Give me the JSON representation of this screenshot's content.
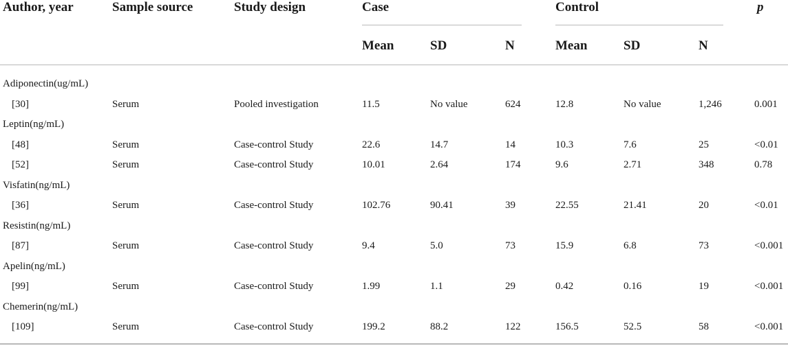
{
  "header": {
    "author_year": "Author, year",
    "sample_source": "Sample source",
    "study_design": "Study design",
    "case": "Case",
    "control": "Control",
    "p": "p",
    "sub": [
      "Mean",
      "SD",
      "N",
      "Mean",
      "SD",
      "N"
    ]
  },
  "groups": [
    {
      "label": "Adiponectin(ug/mL)",
      "rows": [
        {
          "ref": "[30]",
          "source": "Serum",
          "design": "Pooled investigation",
          "case_mean": "11.5",
          "case_sd": "No value",
          "case_n": "624",
          "ctrl_mean": "12.8",
          "ctrl_sd": "No value",
          "ctrl_n": "1,246",
          "p": "0.001"
        }
      ]
    },
    {
      "label": "Leptin(ng/mL)",
      "rows": [
        {
          "ref": "[48]",
          "source": "Serum",
          "design": "Case-control Study",
          "case_mean": "22.6",
          "case_sd": "14.7",
          "case_n": "14",
          "ctrl_mean": "10.3",
          "ctrl_sd": "7.6",
          "ctrl_n": "25",
          "p": "<0.01"
        },
        {
          "ref": "[52]",
          "source": "Serum",
          "design": "Case-control Study",
          "case_mean": "10.01",
          "case_sd": "2.64",
          "case_n": "174",
          "ctrl_mean": "9.6",
          "ctrl_sd": "2.71",
          "ctrl_n": "348",
          "p": "0.78"
        }
      ]
    },
    {
      "label": "Visfatin(ng/mL)",
      "rows": [
        {
          "ref": "[36]",
          "source": "Serum",
          "design": "Case-control Study",
          "case_mean": "102.76",
          "case_sd": "90.41",
          "case_n": "39",
          "ctrl_mean": "22.55",
          "ctrl_sd": "21.41",
          "ctrl_n": "20",
          "p": "<0.01"
        }
      ]
    },
    {
      "label": "Resistin(ng/mL)",
      "rows": [
        {
          "ref": "[87]",
          "source": "Serum",
          "design": "Case-control Study",
          "case_mean": "9.4",
          "case_sd": "5.0",
          "case_n": "73",
          "ctrl_mean": "15.9",
          "ctrl_sd": "6.8",
          "ctrl_n": "73",
          "p": "<0.001"
        }
      ]
    },
    {
      "label": "Apelin(ng/mL)",
      "rows": [
        {
          "ref": "[99]",
          "source": "Serum",
          "design": "Case-control Study",
          "case_mean": "1.99",
          "case_sd": "1.1",
          "case_n": "29",
          "ctrl_mean": "0.42",
          "ctrl_sd": "0.16",
          "ctrl_n": "19",
          "p": "<0.001"
        }
      ]
    },
    {
      "label": "Chemerin(ng/mL)",
      "rows": [
        {
          "ref": "[109]",
          "source": "Serum",
          "design": "Case-control Study",
          "case_mean": "199.2",
          "case_sd": "88.2",
          "case_n": "122",
          "ctrl_mean": "156.5",
          "ctrl_sd": "52.5",
          "ctrl_n": "58",
          "p": "<0.001"
        }
      ]
    }
  ]
}
